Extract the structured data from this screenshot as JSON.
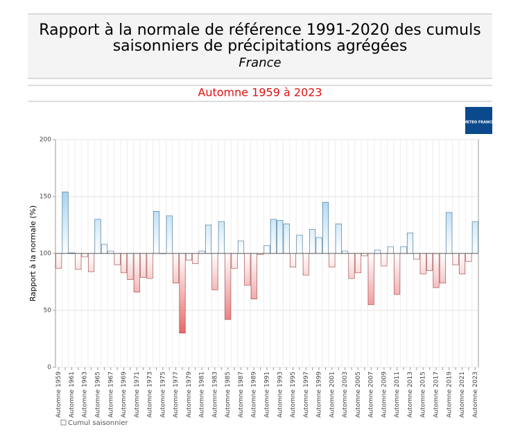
{
  "chart_data": {
    "type": "bar",
    "title": [
      "Rapport à la normale de référence 1991-2020 des cumuls",
      "saisonniers de précipitations agrégées"
    ],
    "subtitle": "France",
    "period": "Automne 1959 à 2023",
    "logo": "METEO FRANCE",
    "y_label": "Rapport à la normale (%)",
    "ylim": [
      0,
      200
    ],
    "yticks": [
      0,
      50,
      100,
      150,
      200
    ],
    "baseline": 100,
    "grid": true,
    "colors": {
      "above": "#5aaee6",
      "below": "#e02828"
    },
    "categories": [
      "Automne 1959",
      null,
      "Automne 1961",
      null,
      "Automne 1963",
      null,
      "Automne 1965",
      null,
      "Automne 1967",
      null,
      "Automne 1969",
      null,
      "Automne 1971",
      null,
      "Automne 1973",
      null,
      "Automne 1975",
      null,
      "Automne 1977",
      null,
      "Automne 1979",
      null,
      "Automne 1981",
      null,
      "Automne 1983",
      null,
      "Automne 1985",
      null,
      "Automne 1987",
      null,
      "Automne 1989",
      null,
      "Automne 1991",
      null,
      "Automne 1993",
      null,
      "Automne 1995",
      null,
      "Automne 1997",
      null,
      "Automne 1999",
      null,
      "Automne 2001",
      null,
      "Automne 2003",
      null,
      "Automne 2005",
      null,
      "Automne 2007",
      null,
      "Automne 2009",
      null,
      "Automne 2011",
      null,
      "Automne 2013",
      null,
      "Automne 2015",
      null,
      "Automne 2017",
      null,
      "Automne 2019",
      null,
      "Automne 2021",
      null,
      "Automne 2023"
    ],
    "series": [
      {
        "name": "Cumul saisonnier",
        "values": [
          87,
          154,
          100.5,
          86,
          97,
          84,
          130,
          108,
          102,
          90,
          83,
          77,
          66,
          79,
          78,
          137,
          100,
          133,
          74,
          30,
          94,
          91,
          102,
          125,
          68,
          128,
          42,
          87,
          111,
          72,
          60,
          99,
          107,
          130,
          129,
          126,
          88,
          116,
          81,
          121,
          114,
          145,
          88,
          126,
          102,
          78,
          83,
          98,
          55,
          103,
          89,
          106,
          64,
          106,
          118,
          95,
          82,
          85,
          70,
          74,
          136,
          90,
          82,
          93,
          128
        ]
      }
    ]
  }
}
